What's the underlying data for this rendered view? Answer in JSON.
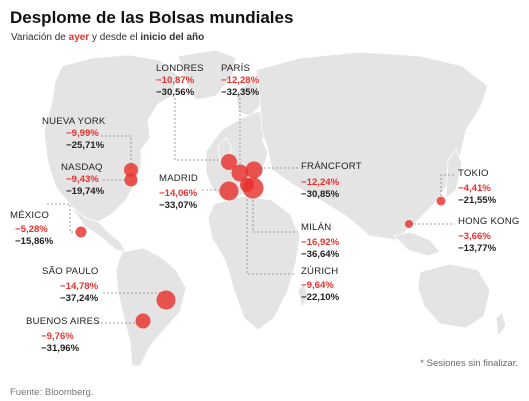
{
  "header": {
    "title": "Desplome de las Bolsas mundiales",
    "subtitle_pre": "Variación de ",
    "subtitle_ayer": "ayer",
    "subtitle_mid": " y desde el ",
    "subtitle_inicio": "inicio del año"
  },
  "colors": {
    "marker": "#e8312d",
    "land": "#e4e4e4",
    "leader": "#888888",
    "daily": "#e8312d"
  },
  "markets": [
    {
      "id": "londres",
      "name": "LONDRES",
      "daily": "−10,87%",
      "ytd": "−30,56%",
      "daily_pct": -10.87,
      "ytd_pct": -30.56
    },
    {
      "id": "paris",
      "name": "PARÍS",
      "daily": "−12,28%",
      "ytd": "−32,35%",
      "daily_pct": -12.28,
      "ytd_pct": -32.35
    },
    {
      "id": "nueva-york",
      "name": "NUEVA YORK",
      "daily": "−9,99%",
      "ytd": "−25,71%",
      "daily_pct": -9.99,
      "ytd_pct": -25.71
    },
    {
      "id": "nasdaq",
      "name": "NASDAQ",
      "daily": "−9,43%",
      "ytd": "−19,74%",
      "daily_pct": -9.43,
      "ytd_pct": -19.74
    },
    {
      "id": "madrid",
      "name": "MADRID",
      "daily": "−14,06%",
      "ytd": "−33,07%",
      "daily_pct": -14.06,
      "ytd_pct": -33.07
    },
    {
      "id": "francfort",
      "name": "FRÁNCFORT",
      "daily": "−12,24%",
      "ytd": "−30,85%",
      "daily_pct": -12.24,
      "ytd_pct": -30.85
    },
    {
      "id": "tokio",
      "name": "TOKIO",
      "daily": "−4,41%",
      "ytd": "−21,55%",
      "daily_pct": -4.41,
      "ytd_pct": -21.55
    },
    {
      "id": "hong-kong",
      "name": "HONG KONG",
      "daily": "−3,66%",
      "ytd": "−13,77%",
      "daily_pct": -3.66,
      "ytd_pct": -13.77
    },
    {
      "id": "mexico",
      "name": "MÉXICO",
      "daily": "−5,28%",
      "ytd": "−15,86%",
      "daily_pct": -5.28,
      "ytd_pct": -15.86
    },
    {
      "id": "milan",
      "name": "MILÁN",
      "daily": "−16,92%",
      "ytd": "−36,64%",
      "daily_pct": -16.92,
      "ytd_pct": -36.64
    },
    {
      "id": "zurich",
      "name": "ZÚRICH",
      "daily": "−9,64%",
      "ytd": "−22,10%",
      "daily_pct": -9.64,
      "ytd_pct": -22.1
    },
    {
      "id": "sao-paulo",
      "name": "SÃO PAULO",
      "daily": "−14,78%",
      "ytd": "−37,24%",
      "daily_pct": -14.78,
      "ytd_pct": -37.24
    },
    {
      "id": "buenos-aires",
      "name": "BUENOS AIRES",
      "daily": "−9,76%",
      "ytd": "−31,96%",
      "daily_pct": -9.76,
      "ytd_pct": -31.96
    }
  ],
  "footer": {
    "note": "* Sesiones sin finalizar.",
    "source": "Fuente: Bloomberg."
  }
}
